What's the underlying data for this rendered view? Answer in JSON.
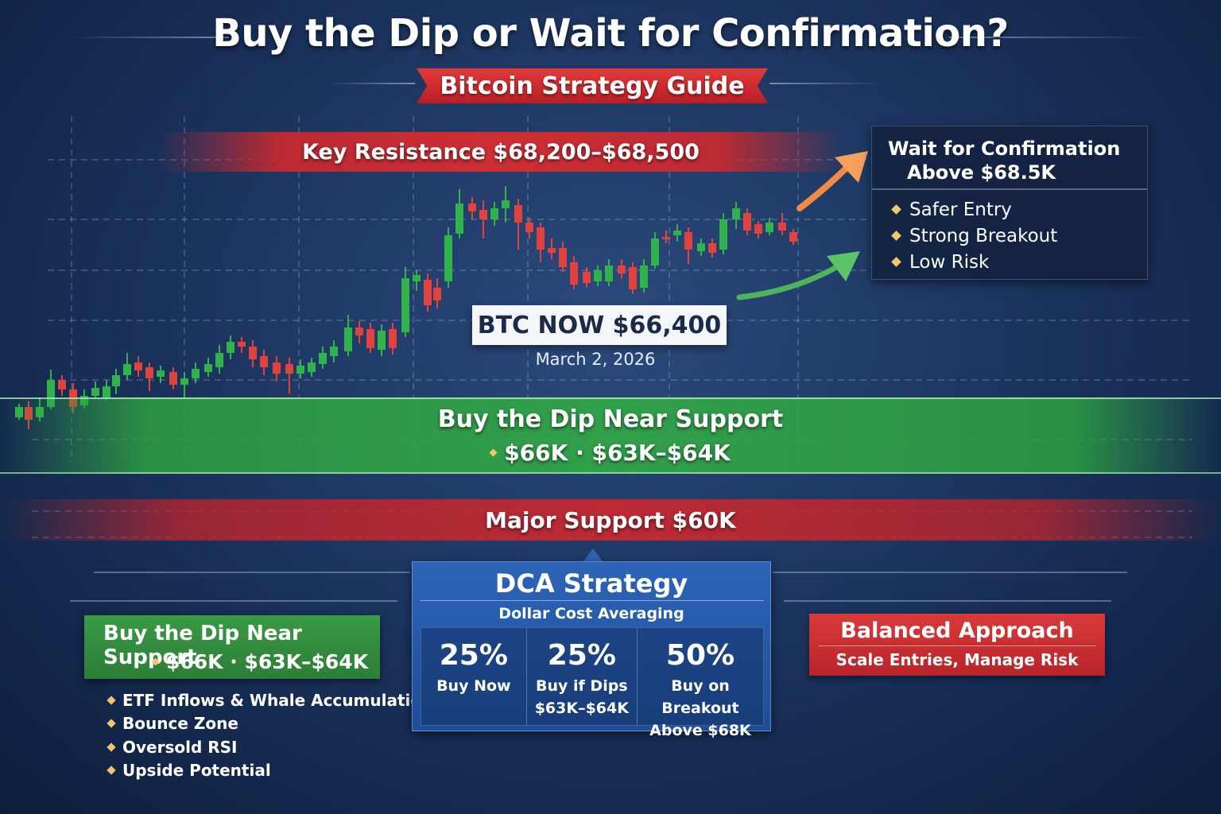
{
  "header": {
    "title": "Buy the Dip or Wait for Confirmation?",
    "subtitle": "Bitcoin Strategy Guide"
  },
  "chart": {
    "resistance_label": "Key Resistance $68,200–$68,500",
    "btc_now": "BTC NOW $66,400",
    "date": "March 2, 2026",
    "support_title": "Buy the Dip Near Support",
    "support_range": "$66K · $63K–$64K",
    "major_support": "Major Support $60K",
    "bull_color": "#2fb34a",
    "bear_color": "#e0423d"
  },
  "wait_panel": {
    "title_line1": "Wait for Confirmation",
    "title_line2": "Above $68.5K",
    "items": [
      "Safer Entry",
      "Strong Breakout",
      "Low Risk"
    ]
  },
  "dip_panel": {
    "title": "Buy the Dip Near Support",
    "range": "$66K · $63K–$64K",
    "items": [
      "ETF Inflows & Whale Accumulation",
      "Bounce Zone",
      "Oversold RSI",
      "Upside Potential"
    ]
  },
  "dca_panel": {
    "title": "DCA Strategy",
    "subtitle": "Dollar Cost Averaging",
    "columns": [
      {
        "percent": "25%",
        "label_line1": "Buy Now",
        "label_line2": ""
      },
      {
        "percent": "25%",
        "label_line1": "Buy if Dips",
        "label_line2": "$63K–$64K"
      },
      {
        "percent": "50%",
        "label_line1": "Buy on Breakout",
        "label_line2": "Above $68K"
      }
    ]
  },
  "balanced_panel": {
    "title": "Balanced Approach",
    "subtitle": "Scale Entries, Manage Risk"
  }
}
